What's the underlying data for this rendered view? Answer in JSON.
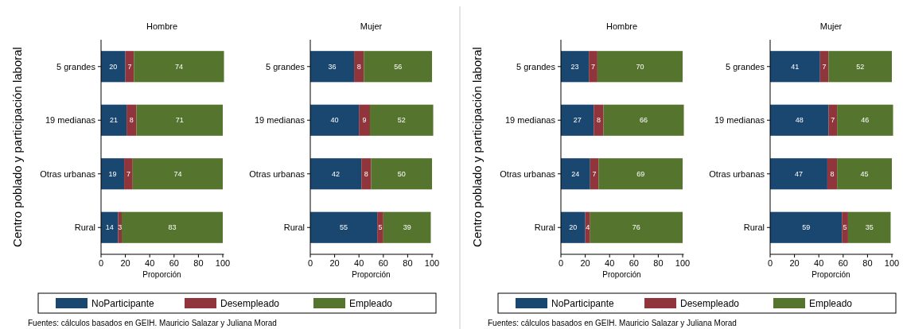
{
  "chart_data": [
    {
      "type": "bar",
      "orientation": "horizontal",
      "stacked": true,
      "title": "Hombre",
      "ylabel": "Centro poblado y participación laboral",
      "xlabel": "Proporción",
      "categories": [
        "5 grandes",
        "19 medianas",
        "Otras urbanas",
        "Rural"
      ],
      "xlim": [
        0,
        101
      ],
      "xticks": [
        0,
        20,
        40,
        60,
        80,
        100
      ],
      "data_labels": true,
      "legend": "bottom",
      "annotations": [
        "Fuentes: cálculos basados en GEIH. Mauricio Salazar y Juliana Morad"
      ],
      "series": [
        {
          "name": "NoParticipante",
          "color": "#1a476f",
          "values": [
            20,
            21,
            19,
            14
          ]
        },
        {
          "name": "Desempleado",
          "color": "#90353b",
          "values": [
            7,
            8,
            7,
            3
          ]
        },
        {
          "name": "Empleado",
          "color": "#55752f",
          "values": [
            74,
            71,
            74,
            83
          ]
        }
      ]
    },
    {
      "type": "bar",
      "orientation": "horizontal",
      "stacked": true,
      "title": "Mujer",
      "xlabel": "Proporción",
      "categories": [
        "5 grandes",
        "19 medianas",
        "Otras urbanas",
        "Rural"
      ],
      "xlim": [
        0,
        101
      ],
      "xticks": [
        0,
        20,
        40,
        60,
        80,
        100
      ],
      "data_labels": true,
      "series": [
        {
          "color": "#1a476f",
          "values": [
            36,
            40,
            42,
            55
          ]
        },
        {
          "color": "#90353b",
          "values": [
            8,
            9,
            8,
            5
          ]
        },
        {
          "color": "#55752f",
          "values": [
            56,
            52,
            50,
            39
          ]
        }
      ]
    },
    {
      "type": "bar",
      "orientation": "horizontal",
      "stacked": true,
      "title": "Hombre",
      "ylabel": "Centro poblado y participación laboral",
      "xlabel": "Proporción",
      "categories": [
        "5 grandes",
        "19 medianas",
        "Otras urbanas",
        "Rural"
      ],
      "xlim": [
        0,
        101
      ],
      "xticks": [
        0,
        20,
        40,
        60,
        80,
        100
      ],
      "data_labels": true,
      "legend": "bottom",
      "annotations": [
        "Fuentes: cálculos basados en GEIH. Mauricio Salazar y Juliana Morad"
      ],
      "series": [
        {
          "name": "NoParticipante",
          "color": "#1a476f",
          "values": [
            23,
            27,
            24,
            20
          ]
        },
        {
          "name": "Desempleado",
          "color": "#90353b",
          "values": [
            7,
            8,
            7,
            4
          ]
        },
        {
          "name": "Empleado",
          "color": "#55752f",
          "values": [
            70,
            66,
            69,
            76
          ]
        }
      ]
    },
    {
      "type": "bar",
      "orientation": "horizontal",
      "stacked": true,
      "title": "Mujer",
      "xlabel": "Proporción",
      "categories": [
        "5 grandes",
        "19 medianas",
        "Otras urbanas",
        "Rural"
      ],
      "xlim": [
        0,
        101
      ],
      "xticks": [
        0,
        20,
        40,
        60,
        80,
        100
      ],
      "data_labels": true,
      "series": [
        {
          "color": "#1a476f",
          "values": [
            41,
            48,
            47,
            59
          ]
        },
        {
          "color": "#90353b",
          "values": [
            7,
            7,
            8,
            5
          ]
        },
        {
          "color": "#55752f",
          "values": [
            52,
            46,
            45,
            35
          ]
        }
      ]
    }
  ]
}
